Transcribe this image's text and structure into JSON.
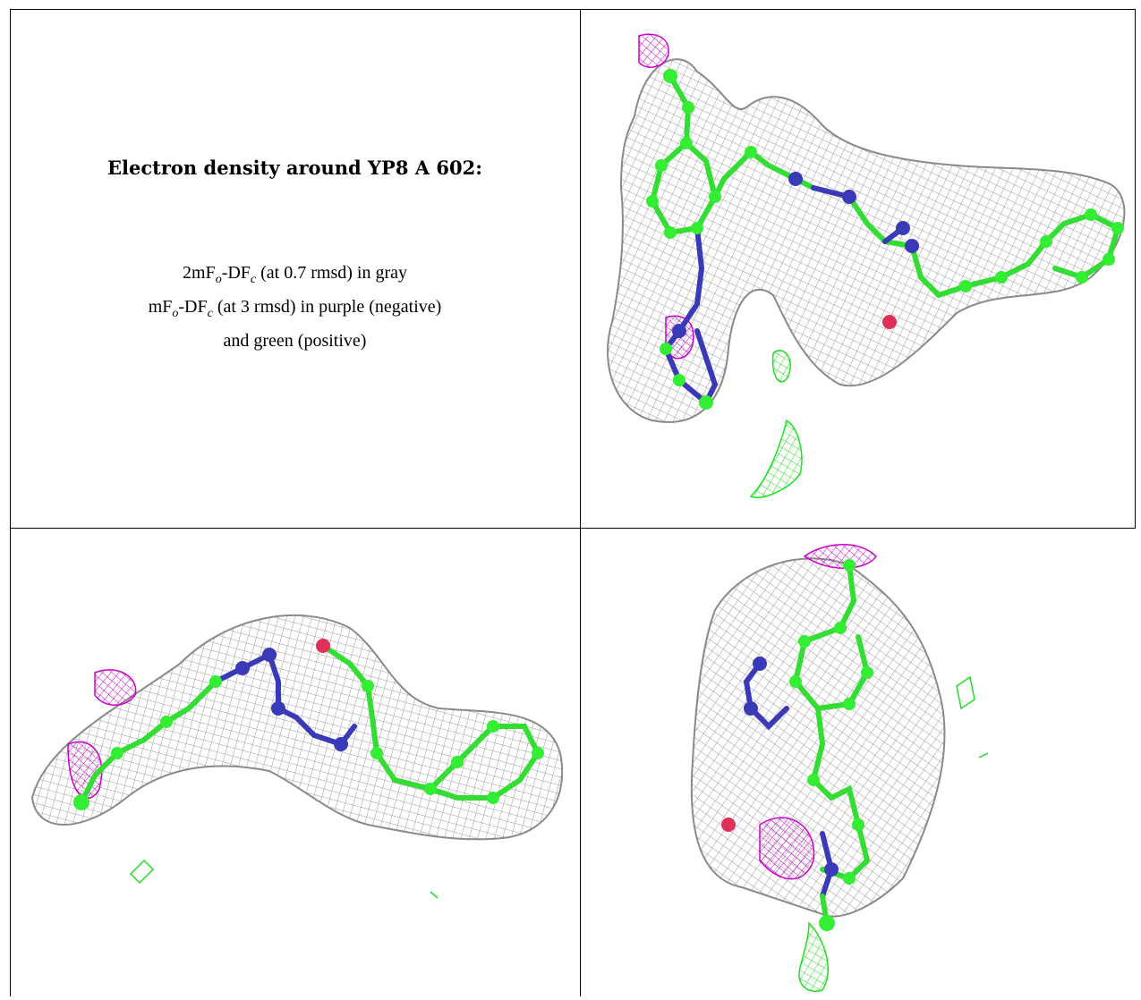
{
  "caption": {
    "title": "Electron density around YP8 A 602:",
    "line1_a": "2mF",
    "line1_sub1": "o",
    "line1_b": "-DF",
    "line1_sub2": "c",
    "line1_c": " (at 0.7 rmsd) in gray",
    "line2_a": "mF",
    "line2_sub1": "o",
    "line2_b": "-DF",
    "line2_sub2": "c",
    "line2_c": " (at 3 rmsd) in purple (negative)",
    "line3": "and green (positive)"
  },
  "colors": {
    "mesh_gray": "#9a9a9a",
    "carbon_green": "#33ee33",
    "nitrogen_blue": "#3a3ab8",
    "oxygen_red": "#e0305a",
    "negative_purple": "#cc00cc",
    "positive_green": "#22dd22",
    "grid_line": "#000000"
  },
  "panels": [
    {
      "name": "view-top-right"
    },
    {
      "name": "view-bottom-left"
    },
    {
      "name": "view-bottom-right"
    }
  ]
}
